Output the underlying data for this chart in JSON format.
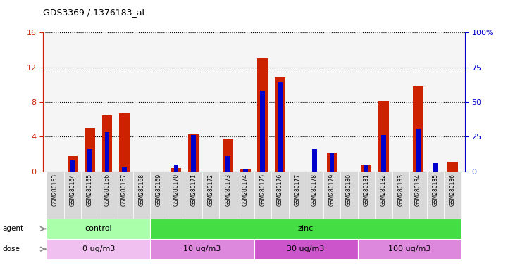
{
  "title": "GDS3369 / 1376183_at",
  "samples": [
    "GSM280163",
    "GSM280164",
    "GSM280165",
    "GSM280166",
    "GSM280167",
    "GSM280168",
    "GSM280169",
    "GSM280170",
    "GSM280171",
    "GSM280172",
    "GSM280173",
    "GSM280174",
    "GSM280175",
    "GSM280176",
    "GSM280177",
    "GSM280178",
    "GSM280179",
    "GSM280180",
    "GSM280181",
    "GSM280182",
    "GSM280183",
    "GSM280184",
    "GSM280185",
    "GSM280186"
  ],
  "count": [
    0.0,
    1.8,
    5.0,
    6.5,
    6.7,
    0.0,
    0.0,
    0.4,
    4.3,
    0.0,
    3.7,
    0.2,
    13.0,
    10.8,
    0.0,
    0.0,
    2.2,
    0.0,
    0.7,
    8.1,
    0.0,
    9.8,
    0.0,
    1.1
  ],
  "percentile": [
    0.0,
    8.0,
    16.0,
    28.0,
    3.0,
    0.0,
    0.0,
    5.0,
    26.0,
    0.0,
    11.0,
    2.0,
    58.0,
    64.0,
    0.0,
    16.0,
    13.0,
    0.0,
    5.0,
    26.0,
    0.0,
    31.0,
    6.0,
    0.0
  ],
  "agent_groups": [
    {
      "label": "control",
      "start": 0,
      "end": 5,
      "color": "#AAFFAA"
    },
    {
      "label": "zinc",
      "start": 6,
      "end": 23,
      "color": "#44DD44"
    }
  ],
  "dose_groups": [
    {
      "label": "0 ug/m3",
      "start": 0,
      "end": 5,
      "color": "#F0B0F0"
    },
    {
      "label": "10 ug/m3",
      "start": 6,
      "end": 11,
      "color": "#DD88DD"
    },
    {
      "label": "30 ug/m3",
      "start": 12,
      "end": 17,
      "color": "#CC66CC"
    },
    {
      "label": "100 ug/m3",
      "start": 18,
      "end": 23,
      "color": "#DD88DD"
    }
  ],
  "ylim_left": [
    0,
    16
  ],
  "ylim_right": [
    0,
    100
  ],
  "yticks_left": [
    0,
    4,
    8,
    12,
    16
  ],
  "yticks_right": [
    0,
    25,
    50,
    75,
    100
  ],
  "bar_color": "#CC2200",
  "marker_color": "#0000CC",
  "plot_bg": "#F5F5F5",
  "xticklabel_bg": "#D8D8D8"
}
